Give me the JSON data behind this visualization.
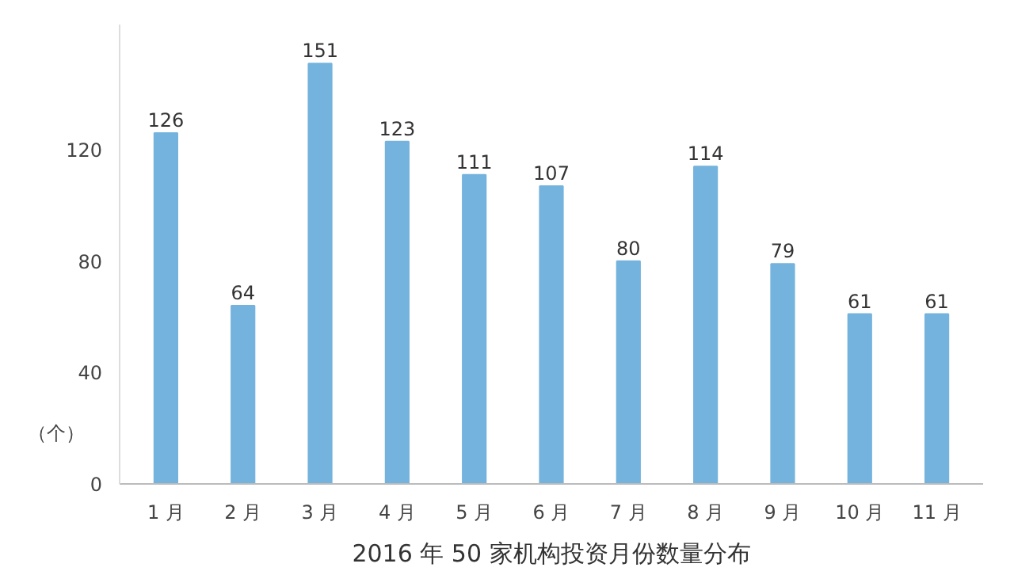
{
  "chart_data": {
    "type": "bar",
    "title": "2016 年 50 家机构投资月份数量分布",
    "ylabel": "（个）",
    "categories": [
      "1 月",
      "2 月",
      "3 月",
      "4 月",
      "5 月",
      "6 月",
      "7 月",
      "8 月",
      "9 月",
      "10 月",
      "11 月"
    ],
    "values": [
      126,
      64,
      151,
      123,
      111,
      107,
      80,
      114,
      79,
      61,
      61
    ],
    "color": "#74b3dd",
    "ylim": [
      0,
      165
    ],
    "yticks": [
      0,
      40,
      80,
      120
    ],
    "grid": false,
    "data_labels": true
  }
}
